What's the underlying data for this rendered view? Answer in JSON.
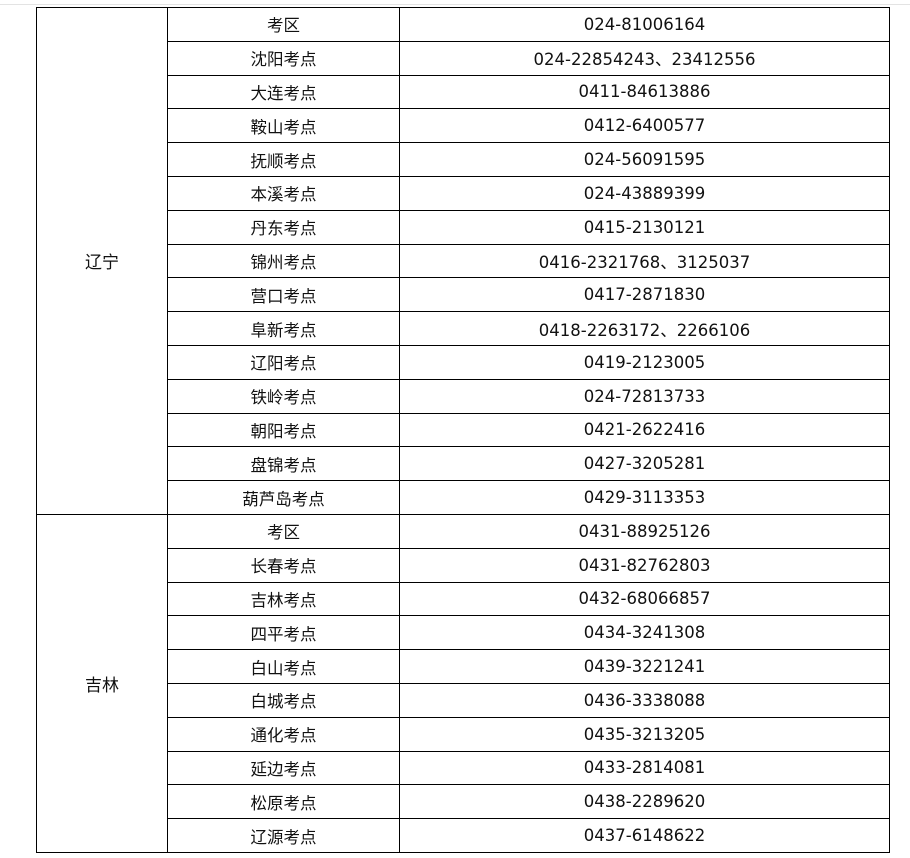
{
  "table": {
    "groups": [
      {
        "province": "辽宁",
        "rows": [
          {
            "site": "考区",
            "phone": "024-81006164"
          },
          {
            "site": "沈阳考点",
            "phone": "024-22854243、23412556"
          },
          {
            "site": "大连考点",
            "phone": "0411-84613886"
          },
          {
            "site": "鞍山考点",
            "phone": "0412-6400577"
          },
          {
            "site": "抚顺考点",
            "phone": "024-56091595"
          },
          {
            "site": "本溪考点",
            "phone": "024-43889399"
          },
          {
            "site": "丹东考点",
            "phone": "0415-2130121"
          },
          {
            "site": "锦州考点",
            "phone": "0416-2321768、3125037"
          },
          {
            "site": "营口考点",
            "phone": "0417-2871830"
          },
          {
            "site": "阜新考点",
            "phone": "0418-2263172、2266106"
          },
          {
            "site": "辽阳考点",
            "phone": "0419-2123005"
          },
          {
            "site": "铁岭考点",
            "phone": "024-72813733"
          },
          {
            "site": "朝阳考点",
            "phone": "0421-2622416"
          },
          {
            "site": "盘锦考点",
            "phone": "0427-3205281"
          },
          {
            "site": "葫芦岛考点",
            "phone": "0429-3113353"
          }
        ]
      },
      {
        "province": "吉林",
        "rows": [
          {
            "site": "考区",
            "phone": "0431-88925126"
          },
          {
            "site": "长春考点",
            "phone": "0431-82762803"
          },
          {
            "site": "吉林考点",
            "phone": "0432-68066857"
          },
          {
            "site": "四平考点",
            "phone": "0434-3241308"
          },
          {
            "site": "白山考点",
            "phone": "0439-3221241"
          },
          {
            "site": "白城考点",
            "phone": "0436-3338088"
          },
          {
            "site": "通化考点",
            "phone": "0435-3213205"
          },
          {
            "site": "延边考点",
            "phone": "0433-2814081"
          },
          {
            "site": "松原考点",
            "phone": "0438-2289620"
          },
          {
            "site": "辽源考点",
            "phone": "0437-6148622"
          }
        ]
      }
    ]
  }
}
